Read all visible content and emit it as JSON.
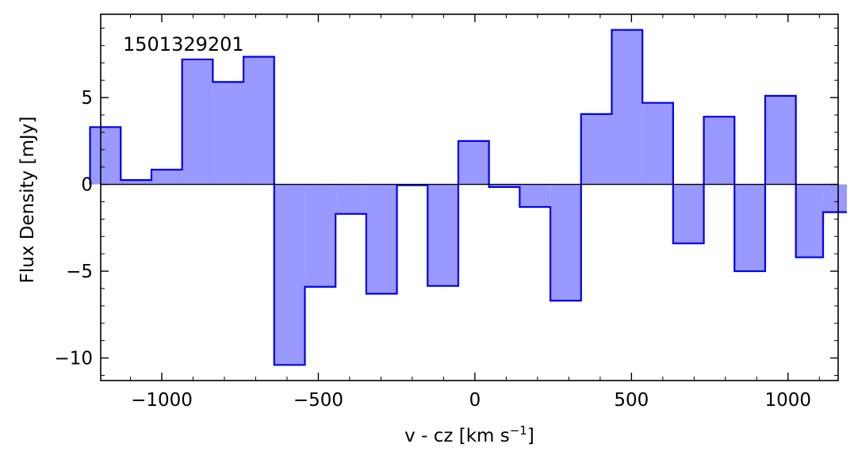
{
  "chart_data": {
    "type": "area",
    "step": "mid",
    "annotation": "1501329201",
    "xlabel": "v - cz [km s",
    "xlabel_sup": "−1",
    "xlabel_end": "]",
    "ylabel": "Flux Density [mJy]",
    "xlim": [
      -1195,
      1160
    ],
    "ylim": [
      -11.3,
      9.8
    ],
    "x_ticks": [
      -1000,
      -500,
      0,
      500,
      1000
    ],
    "x_tick_labels": [
      "−1000",
      "−500",
      "0",
      "500",
      "1000"
    ],
    "y_ticks": [
      -10,
      -5,
      0,
      5
    ],
    "y_tick_labels": [
      "−10",
      "−5",
      "0",
      "5"
    ],
    "series": [
      {
        "color": "#0000ee",
        "fill": "#9999ff",
        "x": [
          -1180,
          -1082,
          -984,
          -886,
          -788,
          -690,
          -592,
          -494,
          -396,
          -298,
          -200,
          -102,
          -4,
          94,
          192,
          290,
          388,
          486,
          584,
          682,
          780,
          878,
          976,
          1074,
          1150
        ],
        "values": [
          3.3,
          0.25,
          0.85,
          7.2,
          5.9,
          7.35,
          -10.4,
          -5.9,
          -1.7,
          -6.3,
          -0.05,
          -5.85,
          2.5,
          -0.15,
          -1.3,
          -6.7,
          4.05,
          8.9,
          4.7,
          -3.4,
          3.9,
          -5.0,
          5.1,
          -4.2,
          -1.6
        ]
      }
    ]
  }
}
